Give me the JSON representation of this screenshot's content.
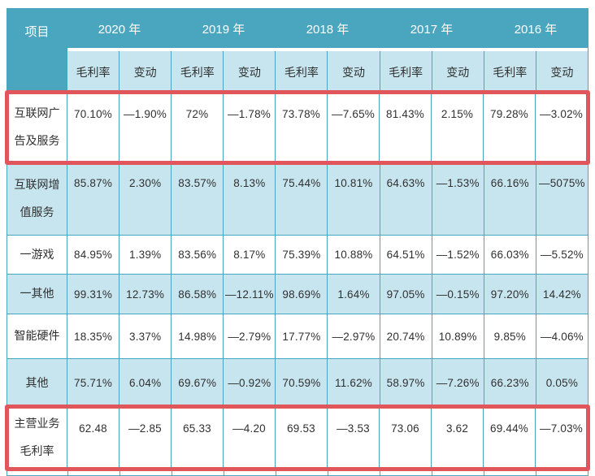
{
  "colors": {
    "header_teal": "#4AA5BE",
    "subheader_light_blue": "#C7E5EF",
    "row_alt_light_blue": "#C7E5EF",
    "row_white": "#FFFFFF",
    "highlight_red": "#E0565A",
    "grid_line_teal": "#4AA5BE",
    "header_text": "#FFFFFF",
    "body_text": "#303030"
  },
  "chart_data": {
    "type": "table",
    "corner_header": "项目",
    "year_headers": [
      "2020 年",
      "2019 年",
      "2018 年",
      "2017 年",
      "2016 年"
    ],
    "sub_headers": [
      "毛利率",
      "变动",
      "毛利率",
      "变动",
      "毛利率",
      "变动",
      "毛利率",
      "变动",
      "毛利率",
      "变动"
    ],
    "rows": [
      {
        "label": "互联网广告及服务",
        "highlighted": true,
        "values": [
          "70.10%",
          "—1.90%",
          "72%",
          "—1.78%",
          "73.78%",
          "—7.65%",
          "81.43%",
          "2.15%",
          "79.28%",
          "—3.02%"
        ]
      },
      {
        "label": "互联网增值服务",
        "highlighted": false,
        "values": [
          "85.87%",
          "2.30%",
          "83.57%",
          "8.13%",
          "75.44%",
          "10.81%",
          "64.63%",
          "—1.53%",
          "66.16%",
          "—5075%"
        ]
      },
      {
        "label": "一游戏",
        "highlighted": false,
        "values": [
          "84.95%",
          "1.39%",
          "83.56%",
          "8.17%",
          "75.39%",
          "10.88%",
          "64.51%",
          "—1.52%",
          "66.03%",
          "—5.52%"
        ]
      },
      {
        "label": "一其他",
        "highlighted": false,
        "values": [
          "99.31%",
          "12.73%",
          "86.58%",
          "—12.11%",
          "98.69%",
          "1.64%",
          "97.05%",
          "—0.15%",
          "97.20%",
          "14.42%"
        ]
      },
      {
        "label": "智能硬件",
        "highlighted": false,
        "values": [
          "18.35%",
          "3.37%",
          "14.98%",
          "—2.79%",
          "17.77%",
          "—2.97%",
          "20.74%",
          "10.89%",
          "9.85%",
          "—4.06%"
        ]
      },
      {
        "label": "其他",
        "highlighted": false,
        "values": [
          "75.71%",
          "6.04%",
          "69.67%",
          "—0.92%",
          "70.59%",
          "11.62%",
          "58.97%",
          "—7.26%",
          "66.23%",
          "0.05%"
        ]
      },
      {
        "label": "主营业务毛利率",
        "highlighted": true,
        "values": [
          "62.48",
          "—2.85",
          "65.33",
          "—4.20",
          "69.53",
          "—3.53",
          "73.06",
          "3.62",
          "69.44%",
          "—7.03%"
        ]
      }
    ]
  }
}
